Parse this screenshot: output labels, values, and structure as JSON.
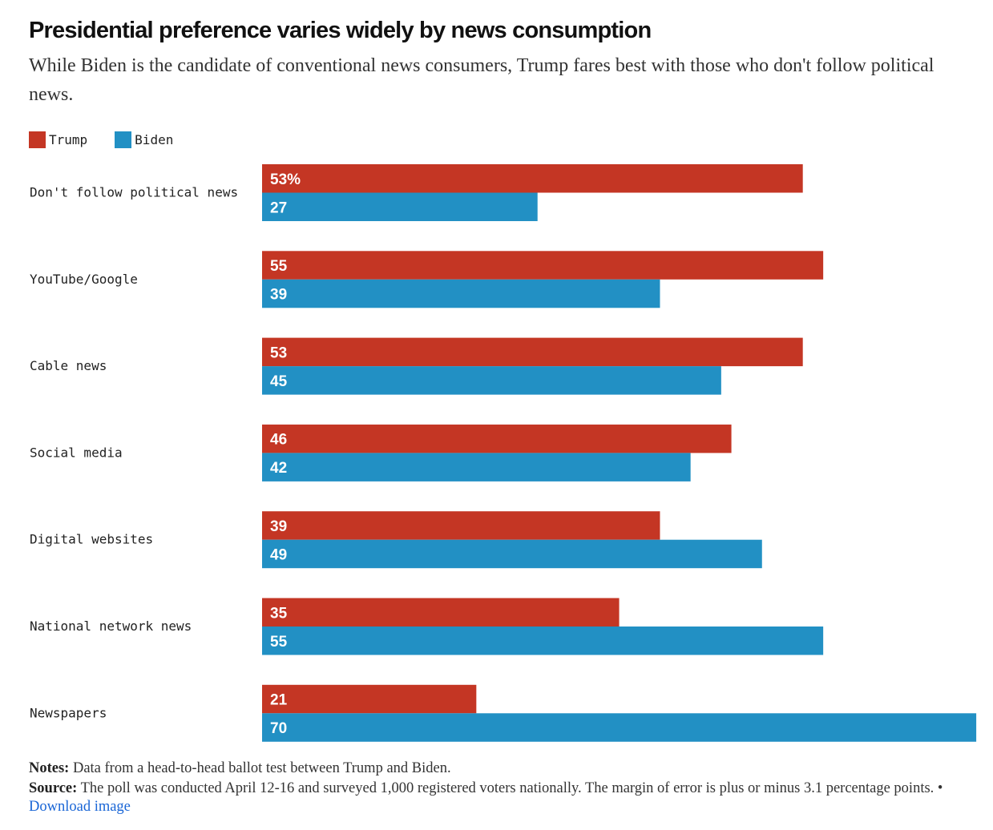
{
  "title": "Presidential preference varies widely by news consumption",
  "subtitle": "While Biden is the candidate of conventional news consumers, Trump fares best with those who don't follow political news.",
  "legend": [
    {
      "name": "Trump",
      "color": "#c43624"
    },
    {
      "name": "Biden",
      "color": "#2290c4"
    }
  ],
  "chart_data": {
    "type": "bar",
    "orientation": "horizontal",
    "categories": [
      "Don't follow political news",
      "YouTube/Google",
      "Cable news",
      "Social media",
      "Digital websites",
      "National network news",
      "Newspapers"
    ],
    "series": [
      {
        "name": "Trump",
        "color": "#c43624",
        "values": [
          53,
          55,
          53,
          46,
          39,
          35,
          21
        ],
        "labels": [
          "53%",
          "55",
          "53",
          "46",
          "39",
          "35",
          "21"
        ]
      },
      {
        "name": "Biden",
        "color": "#2290c4",
        "values": [
          27,
          39,
          45,
          42,
          49,
          55,
          70
        ],
        "labels": [
          "27",
          "39",
          "45",
          "42",
          "49",
          "55",
          "70"
        ]
      }
    ],
    "xlim": [
      0,
      70
    ],
    "grid": false,
    "legend_position": "top-left"
  },
  "footer": {
    "notes_label": "Notes:",
    "notes_text": " Data from a head-to-head ballot test between Trump and Biden.",
    "source_label": "Source:",
    "source_text": " The poll was conducted April 12-16 and surveyed 1,000 registered voters nationally. The margin of error is plus or minus 3.1 percentage points. • ",
    "download_label": "Download image"
  }
}
